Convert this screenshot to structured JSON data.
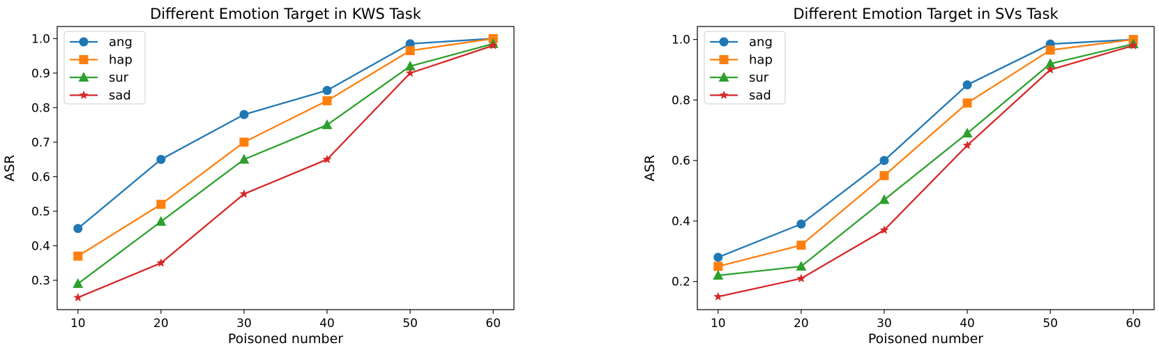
{
  "chart_data": [
    {
      "type": "line",
      "title": "Different Emotion Target in KWS Task",
      "xlabel": "Poisoned number",
      "ylabel": "ASR",
      "x": [
        10,
        20,
        30,
        40,
        50,
        60
      ],
      "xticks": [
        10,
        20,
        30,
        40,
        50,
        60
      ],
      "yticks": [
        0.3,
        0.4,
        0.5,
        0.6,
        0.7,
        0.8,
        0.9,
        1.0
      ],
      "ytick_labels": [
        "0.3",
        "0.4",
        "0.5",
        "0.6",
        "0.7",
        "0.8",
        "0.9",
        "1.0"
      ],
      "xlim": [
        7.5,
        62.5
      ],
      "ylim": [
        0.215,
        1.035
      ],
      "grid": false,
      "legend": "upper left",
      "series": [
        {
          "name": "ang",
          "color": "#1f77b4",
          "marker": "circle",
          "values": [
            0.45,
            0.65,
            0.78,
            0.85,
            0.985,
            1.0
          ]
        },
        {
          "name": "hap",
          "color": "#ff7f0e",
          "marker": "square",
          "values": [
            0.37,
            0.52,
            0.7,
            0.82,
            0.965,
            1.0
          ]
        },
        {
          "name": "sur",
          "color": "#2ca02c",
          "marker": "triangle",
          "values": [
            0.29,
            0.47,
            0.65,
            0.75,
            0.92,
            0.985
          ]
        },
        {
          "name": "sad",
          "color": "#d62728",
          "marker": "star",
          "values": [
            0.25,
            0.35,
            0.55,
            0.65,
            0.9,
            0.98
          ]
        }
      ]
    },
    {
      "type": "line",
      "title": "Different Emotion Target in SVs Task",
      "xlabel": "Poisoned number",
      "ylabel": "ASR",
      "x": [
        10,
        20,
        30,
        40,
        50,
        60
      ],
      "xticks": [
        10,
        20,
        30,
        40,
        50,
        60
      ],
      "yticks": [
        0.2,
        0.4,
        0.6,
        0.8,
        1.0
      ],
      "ytick_labels": [
        "0.2",
        "0.4",
        "0.6",
        "0.8",
        "1.0"
      ],
      "xlim": [
        7.5,
        62.5
      ],
      "ylim": [
        0.107,
        1.043
      ],
      "grid": false,
      "legend": "upper left",
      "series": [
        {
          "name": "ang",
          "color": "#1f77b4",
          "marker": "circle",
          "values": [
            0.28,
            0.39,
            0.6,
            0.85,
            0.985,
            1.0
          ]
        },
        {
          "name": "hap",
          "color": "#ff7f0e",
          "marker": "square",
          "values": [
            0.25,
            0.32,
            0.55,
            0.79,
            0.965,
            1.0
          ]
        },
        {
          "name": "sur",
          "color": "#2ca02c",
          "marker": "triangle",
          "values": [
            0.22,
            0.25,
            0.47,
            0.69,
            0.92,
            0.985
          ]
        },
        {
          "name": "sad",
          "color": "#d62728",
          "marker": "star",
          "values": [
            0.15,
            0.21,
            0.37,
            0.65,
            0.9,
            0.98
          ]
        }
      ]
    }
  ]
}
